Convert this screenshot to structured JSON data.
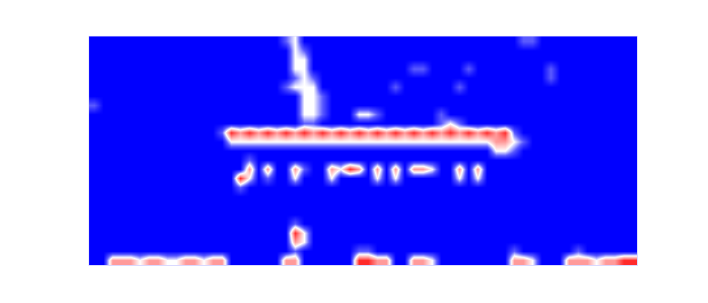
{
  "chart_data": {
    "type": "heatmap",
    "tick_labels": false,
    "xlim": [
      -0.5,
      59.5
    ],
    "ylim": [
      24.5,
      -0.5
    ],
    "zlim": [
      0,
      4
    ],
    "z": [
      [
        0,
        0,
        0,
        0,
        0,
        0,
        0,
        0,
        0,
        0,
        0,
        0,
        0,
        0,
        0,
        0,
        0,
        0,
        0,
        0,
        0,
        1,
        2,
        0,
        0,
        0,
        0,
        0,
        0,
        0,
        0,
        0,
        0,
        0,
        0,
        0,
        0,
        0,
        0,
        0,
        0,
        0,
        0,
        0,
        0,
        0,
        0,
        1,
        1,
        0,
        0,
        0,
        0,
        0,
        0,
        0,
        0,
        0,
        0,
        0
      ],
      [
        0,
        0,
        0,
        0,
        0,
        0,
        0,
        0,
        0,
        0,
        0,
        0,
        0,
        0,
        0,
        0,
        0,
        0,
        0,
        0,
        0,
        0,
        2,
        1,
        0,
        0,
        0,
        0,
        0,
        0,
        0,
        0,
        0,
        0,
        0,
        0,
        0,
        0,
        0,
        0,
        0,
        0,
        0,
        0,
        0,
        0,
        0,
        0,
        0,
        0,
        0,
        0,
        0,
        0,
        0,
        0,
        0,
        0,
        0,
        0
      ],
      [
        0,
        0,
        0,
        0,
        0,
        0,
        0,
        0,
        0,
        0,
        0,
        0,
        0,
        0,
        0,
        0,
        0,
        0,
        0,
        0,
        0,
        0,
        2,
        2,
        0,
        0,
        0,
        0,
        0,
        0,
        0,
        0,
        0,
        0,
        0,
        0,
        0,
        0,
        0,
        0,
        0,
        0,
        0,
        0,
        0,
        0,
        0,
        0,
        0,
        0,
        0,
        0,
        0,
        0,
        0,
        0,
        0,
        0,
        0,
        0
      ],
      [
        0,
        0,
        0,
        0,
        0,
        0,
        0,
        0,
        0,
        0,
        0,
        0,
        0,
        0,
        0,
        0,
        0,
        0,
        0,
        0,
        0,
        0,
        2,
        2,
        0,
        0,
        0,
        0,
        0,
        0,
        0,
        0,
        0,
        0,
        0,
        1,
        1,
        0,
        0,
        0,
        0,
        1,
        0,
        0,
        0,
        0,
        0,
        0,
        0,
        0,
        1,
        0,
        0,
        0,
        0,
        0,
        0,
        0,
        0,
        0
      ],
      [
        0,
        0,
        0,
        0,
        0,
        0,
        0,
        0,
        0,
        0,
        0,
        0,
        0,
        0,
        0,
        0,
        0,
        0,
        0,
        0,
        0,
        0,
        1,
        2,
        1,
        0,
        0,
        0,
        0,
        0,
        0,
        0,
        0,
        0,
        0,
        0,
        0,
        0,
        0,
        0,
        0,
        0,
        0,
        0,
        0,
        0,
        0,
        0,
        0,
        0,
        1,
        0,
        0,
        0,
        0,
        0,
        0,
        0,
        0,
        0
      ],
      [
        0,
        0,
        0,
        0,
        0,
        0,
        0,
        0,
        0,
        0,
        0,
        0,
        0,
        0,
        0,
        0,
        0,
        0,
        0,
        0,
        0,
        1,
        2,
        2,
        2,
        0,
        0,
        0,
        0,
        0,
        0,
        0,
        0,
        1,
        0,
        0,
        0,
        0,
        0,
        0,
        1,
        0,
        0,
        0,
        0,
        0,
        0,
        0,
        0,
        0,
        0,
        0,
        0,
        0,
        0,
        0,
        0,
        0,
        0,
        0
      ],
      [
        0,
        0,
        0,
        0,
        0,
        0,
        0,
        0,
        0,
        0,
        0,
        0,
        0,
        0,
        0,
        0,
        0,
        0,
        0,
        0,
        0,
        0,
        0,
        2,
        2,
        1,
        0,
        0,
        0,
        0,
        0,
        0,
        0,
        0,
        0,
        0,
        0,
        0,
        0,
        0,
        0,
        0,
        0,
        0,
        0,
        0,
        0,
        0,
        0,
        0,
        0,
        0,
        0,
        0,
        0,
        0,
        0,
        0,
        0,
        0
      ],
      [
        1,
        0,
        0,
        0,
        0,
        0,
        0,
        0,
        0,
        0,
        0,
        0,
        0,
        0,
        0,
        0,
        0,
        0,
        0,
        0,
        0,
        0,
        0,
        2,
        2,
        1,
        0,
        0,
        0,
        0,
        0,
        0,
        0,
        0,
        0,
        0,
        0,
        0,
        0,
        0,
        0,
        0,
        0,
        0,
        0,
        0,
        0,
        0,
        0,
        0,
        0,
        0,
        0,
        0,
        0,
        0,
        0,
        0,
        0,
        0
      ],
      [
        0,
        0,
        0,
        0,
        0,
        0,
        0,
        0,
        0,
        0,
        0,
        0,
        0,
        0,
        0,
        0,
        0,
        0,
        0,
        0,
        0,
        0,
        0,
        2,
        2,
        1,
        0,
        0,
        0,
        2,
        2,
        1,
        0,
        0,
        0,
        0,
        0,
        0,
        1,
        0,
        0,
        0,
        0,
        0,
        0,
        0,
        0,
        0,
        0,
        0,
        0,
        0,
        0,
        0,
        0,
        0,
        0,
        0,
        0,
        0
      ],
      [
        0,
        0,
        0,
        0,
        0,
        0,
        0,
        0,
        0,
        0,
        0,
        0,
        0,
        0,
        0,
        0,
        0,
        0,
        0,
        0,
        0,
        0,
        0,
        1,
        1,
        0,
        0,
        0,
        0,
        0,
        0,
        0,
        0,
        0,
        0,
        0,
        0,
        0,
        1,
        2,
        1,
        0,
        0,
        0,
        0,
        0,
        0,
        0,
        0,
        0,
        0,
        0,
        0,
        0,
        0,
        0,
        0,
        0,
        0,
        0
      ],
      [
        0,
        0,
        0,
        0,
        0,
        0,
        0,
        0,
        0,
        0,
        0,
        0,
        0,
        0,
        1,
        4,
        3,
        4,
        3,
        4,
        3,
        4,
        3,
        4,
        3,
        4,
        3,
        4,
        3,
        4,
        3,
        4,
        3,
        4,
        3,
        4,
        3,
        4,
        3,
        4,
        3,
        4,
        3,
        4,
        3,
        4,
        1,
        0,
        0,
        0,
        0,
        0,
        0,
        0,
        0,
        0,
        0,
        0,
        0,
        0
      ],
      [
        0,
        0,
        0,
        0,
        0,
        0,
        0,
        0,
        0,
        0,
        0,
        0,
        0,
        0,
        0,
        2,
        2,
        2,
        2,
        2,
        2,
        2,
        2,
        2,
        2,
        2,
        2,
        2,
        2,
        2,
        2,
        2,
        2,
        2,
        2,
        2,
        2,
        2,
        2,
        2,
        2,
        2,
        2,
        2,
        3,
        3,
        2,
        1,
        0,
        0,
        0,
        0,
        0,
        0,
        0,
        0,
        0,
        0,
        0,
        0
      ],
      [
        0,
        0,
        0,
        0,
        0,
        0,
        0,
        0,
        0,
        0,
        0,
        0,
        0,
        0,
        0,
        0,
        0,
        0,
        0,
        0,
        0,
        0,
        0,
        0,
        0,
        0,
        0,
        0,
        0,
        0,
        0,
        0,
        0,
        0,
        0,
        0,
        0,
        0,
        0,
        0,
        0,
        0,
        0,
        0,
        2,
        2,
        1,
        0,
        0,
        0,
        0,
        0,
        0,
        0,
        0,
        0,
        0,
        0,
        0,
        0
      ],
      [
        0,
        0,
        0,
        0,
        0,
        0,
        0,
        0,
        0,
        0,
        0,
        0,
        0,
        0,
        0,
        0,
        0,
        1,
        0,
        0,
        0,
        0,
        0,
        0,
        0,
        0,
        0,
        0,
        0,
        0,
        0,
        0,
        0,
        0,
        0,
        0,
        0,
        0,
        0,
        0,
        0,
        0,
        0,
        0,
        0,
        0,
        0,
        0,
        0,
        0,
        0,
        0,
        0,
        0,
        0,
        0,
        0,
        0,
        0,
        0
      ],
      [
        0,
        0,
        0,
        0,
        0,
        0,
        0,
        0,
        0,
        0,
        0,
        0,
        0,
        0,
        0,
        0,
        0,
        3,
        0,
        3,
        0,
        0,
        3,
        1,
        0,
        0,
        3,
        2,
        4,
        3,
        0,
        3,
        0,
        3,
        0,
        3,
        3,
        2,
        0,
        0,
        3,
        0,
        3,
        0,
        0,
        0,
        0,
        0,
        0,
        0,
        0,
        0,
        0,
        0,
        0,
        0,
        0,
        0,
        0,
        0
      ],
      [
        0,
        0,
        0,
        0,
        0,
        0,
        0,
        0,
        0,
        0,
        0,
        0,
        0,
        0,
        0,
        0,
        4,
        2,
        0,
        1,
        0,
        0,
        2,
        0,
        0,
        0,
        2,
        0,
        0,
        0,
        0,
        2,
        0,
        2,
        0,
        0,
        0,
        0,
        0,
        0,
        2,
        0,
        2,
        0,
        0,
        0,
        0,
        0,
        0,
        0,
        0,
        0,
        0,
        0,
        0,
        0,
        0,
        0,
        0,
        0
      ],
      [
        0,
        0,
        0,
        0,
        0,
        0,
        0,
        0,
        0,
        0,
        0,
        0,
        0,
        0,
        0,
        0,
        1,
        0,
        0,
        0,
        0,
        0,
        0,
        0,
        0,
        0,
        0,
        0,
        0,
        0,
        0,
        0,
        0,
        0,
        0,
        0,
        0,
        0,
        0,
        0,
        0,
        0,
        0,
        0,
        0,
        0,
        0,
        0,
        0,
        0,
        0,
        0,
        0,
        0,
        0,
        0,
        0,
        0,
        0,
        0
      ],
      [
        0,
        0,
        0,
        0,
        0,
        0,
        0,
        0,
        0,
        0,
        0,
        0,
        0,
        0,
        0,
        0,
        0,
        0,
        0,
        0,
        0,
        0,
        0,
        0,
        0,
        0,
        0,
        0,
        0,
        0,
        0,
        0,
        0,
        0,
        0,
        0,
        0,
        0,
        0,
        0,
        0,
        0,
        0,
        0,
        0,
        0,
        0,
        0,
        0,
        0,
        0,
        0,
        0,
        0,
        0,
        0,
        0,
        0,
        0,
        0
      ],
      [
        0,
        0,
        0,
        0,
        0,
        0,
        0,
        0,
        0,
        0,
        0,
        0,
        0,
        0,
        0,
        0,
        0,
        0,
        0,
        0,
        0,
        0,
        0,
        0,
        0,
        0,
        0,
        0,
        0,
        0,
        0,
        0,
        0,
        0,
        0,
        0,
        0,
        0,
        0,
        0,
        0,
        0,
        0,
        0,
        0,
        0,
        0,
        0,
        0,
        0,
        0,
        0,
        0,
        0,
        0,
        0,
        0,
        0,
        0,
        0
      ],
      [
        0,
        0,
        0,
        0,
        0,
        0,
        0,
        0,
        0,
        0,
        0,
        0,
        0,
        0,
        0,
        0,
        0,
        0,
        0,
        0,
        0,
        0,
        0,
        0,
        0,
        0,
        0,
        0,
        0,
        0,
        0,
        0,
        0,
        0,
        0,
        0,
        0,
        0,
        0,
        0,
        0,
        0,
        0,
        0,
        0,
        0,
        0,
        0,
        0,
        0,
        0,
        0,
        0,
        0,
        0,
        0,
        0,
        0,
        0,
        0
      ],
      [
        0,
        0,
        0,
        0,
        0,
        0,
        0,
        0,
        0,
        0,
        0,
        0,
        0,
        0,
        0,
        0,
        0,
        0,
        0,
        0,
        0,
        0,
        1,
        0,
        0,
        0,
        0,
        0,
        0,
        0,
        0,
        0,
        0,
        0,
        0,
        0,
        0,
        0,
        0,
        0,
        0,
        0,
        0,
        0,
        0,
        0,
        0,
        0,
        0,
        0,
        0,
        0,
        0,
        0,
        0,
        0,
        0,
        0,
        0,
        0
      ],
      [
        0,
        0,
        0,
        0,
        0,
        0,
        0,
        0,
        0,
        0,
        0,
        0,
        0,
        0,
        0,
        0,
        0,
        0,
        0,
        0,
        0,
        0,
        4,
        2,
        0,
        0,
        0,
        0,
        0,
        0,
        0,
        0,
        0,
        0,
        0,
        0,
        0,
        0,
        0,
        0,
        0,
        0,
        0,
        0,
        0,
        0,
        0,
        0,
        0,
        0,
        0,
        0,
        0,
        0,
        0,
        0,
        0,
        0,
        0,
        0
      ],
      [
        0,
        0,
        0,
        0,
        0,
        0,
        0,
        0,
        0,
        0,
        0,
        0,
        0,
        0,
        0,
        0,
        0,
        0,
        0,
        0,
        0,
        0,
        3,
        2,
        0,
        0,
        0,
        0,
        0,
        0,
        0,
        0,
        0,
        0,
        0,
        0,
        0,
        0,
        0,
        0,
        0,
        0,
        0,
        0,
        0,
        0,
        0,
        0,
        0,
        0,
        0,
        0,
        0,
        0,
        0,
        0,
        0,
        0,
        0,
        0
      ],
      [
        0,
        0,
        0,
        0,
        0,
        0,
        0,
        0,
        0,
        0,
        0,
        0,
        0,
        0,
        0,
        0,
        0,
        0,
        0,
        0,
        0,
        0,
        1,
        0,
        0,
        0,
        0,
        0,
        0,
        1,
        1,
        0,
        0,
        0,
        0,
        0,
        0,
        0,
        0,
        0,
        0,
        0,
        0,
        0,
        0,
        0,
        1,
        0,
        0,
        0,
        0,
        0,
        0,
        1,
        0,
        0,
        0,
        0,
        0,
        0
      ],
      [
        0,
        0,
        3,
        3,
        3,
        2,
        3,
        3,
        2,
        2,
        3,
        3,
        2,
        3,
        3,
        0,
        0,
        0,
        0,
        0,
        0,
        3,
        3,
        0,
        0,
        0,
        0,
        0,
        0,
        4,
        4,
        3,
        3,
        0,
        0,
        3,
        3,
        2,
        0,
        0,
        0,
        0,
        0,
        0,
        0,
        0,
        3,
        3,
        2,
        0,
        0,
        0,
        3,
        3,
        3,
        2,
        3,
        3,
        4,
        4
      ]
    ]
  }
}
